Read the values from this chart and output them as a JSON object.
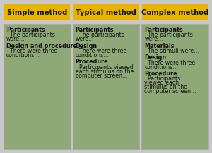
{
  "header_bg": "#E8B400",
  "header_text_color": "#1a1a1a",
  "cell_bg": "#8FA878",
  "cell_border_color": "#aaaaaa",
  "outer_bg": "#c8c8c8",
  "columns": [
    "Simple method",
    "Typical method",
    "Complex method"
  ],
  "col_contents": [
    [
      {
        "bold": "Participants",
        "normal": "  The participants\nwere…"
      },
      {
        "bold": "Design and procedure",
        "normal": "  There were three\nconditions…"
      }
    ],
    [
      {
        "bold": "Participants",
        "normal": "  The participants\nwere…"
      },
      {
        "bold": "Design",
        "normal": "  There were three\nconditions…"
      },
      {
        "bold": "Procedure",
        "normal": "  Participants viewed\neach stimulus on the\ncomputer screen…"
      }
    ],
    [
      {
        "bold": "Participants",
        "normal": "  The participants\nwere…"
      },
      {
        "bold": "Materials",
        "normal": "  The stimuli were…"
      },
      {
        "bold": "Design",
        "normal": "  There were three\nconditions…"
      },
      {
        "bold": "Procedure",
        "normal": "  Participants\nviewed each\nstimulus on the\ncomputer screen…"
      }
    ]
  ],
  "figsize": [
    3.0,
    2.17
  ],
  "dpi": 100,
  "header_fontsize": 7.2,
  "cell_fontsize": 5.6,
  "bold_fontsize": 5.8
}
